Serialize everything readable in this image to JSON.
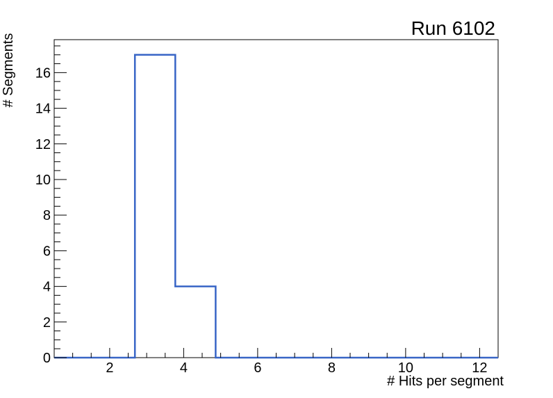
{
  "chart_data": {
    "type": "bar",
    "subtype": "histogram-step",
    "title": "Run 6102",
    "xlabel": "# Hits per segment",
    "ylabel": "# Segments",
    "xlim": [
      0.5,
      12.5
    ],
    "ylim": [
      0,
      17.85
    ],
    "grid": false,
    "bins": {
      "start": 0.5,
      "width": 1.0909090909,
      "counts": [
        0,
        0,
        17,
        4,
        0,
        0,
        0,
        0,
        0,
        0,
        0
      ]
    },
    "x_major_ticks": [
      2,
      4,
      6,
      8,
      10,
      12
    ],
    "x_minor_step": 0.5,
    "y_major_ticks": [
      0,
      2,
      4,
      6,
      8,
      10,
      12,
      14,
      16
    ],
    "y_minor_step": 0.5,
    "colors": {
      "line": "#3865c6",
      "axis": "#000000",
      "text": "#000000",
      "background": "#ffffff"
    }
  }
}
